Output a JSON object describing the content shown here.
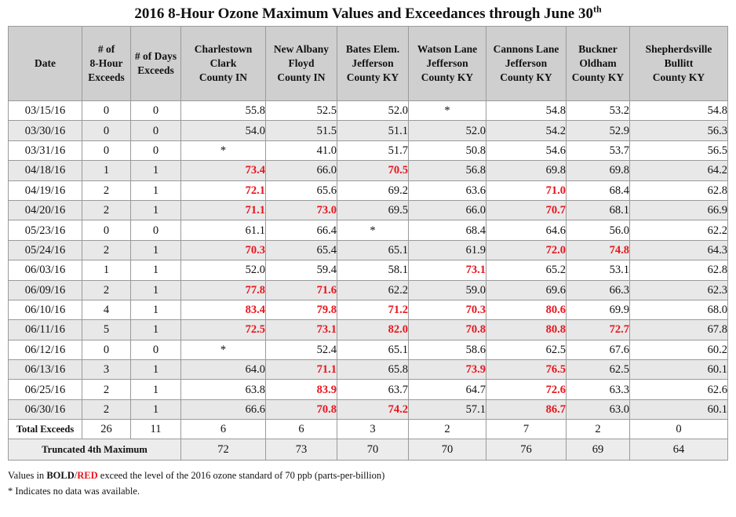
{
  "title": {
    "main": "2016 8-Hour Ozone Maximum Values and Exceedances through June 30",
    "sup": "th"
  },
  "headers": [
    [
      "Date"
    ],
    [
      "# of",
      "8-Hour",
      "Exceeds"
    ],
    [
      "# of Days",
      "Exceeds"
    ],
    [
      "Charlestown",
      "Clark",
      "County IN"
    ],
    [
      "New Albany",
      "Floyd",
      "County IN"
    ],
    [
      "Bates Elem.",
      "Jefferson",
      "County KY"
    ],
    [
      "Watson Lane",
      "Jefferson",
      "County KY"
    ],
    [
      "Cannons Lane",
      "Jefferson",
      "County KY"
    ],
    [
      "Buckner",
      "Oldham",
      "County KY"
    ],
    [
      "Shepherdsville",
      "Bullitt",
      "County KY"
    ]
  ],
  "rows": [
    {
      "date": "03/15/16",
      "exceeds": "0",
      "days": "0",
      "values": [
        "55.8",
        "52.5",
        "52.0",
        "*",
        "54.8",
        "53.2",
        "54.8"
      ]
    },
    {
      "date": "03/30/16",
      "exceeds": "0",
      "days": "0",
      "values": [
        "54.0",
        "51.5",
        "51.1",
        "52.0",
        "54.2",
        "52.9",
        "56.3"
      ]
    },
    {
      "date": "03/31/16",
      "exceeds": "0",
      "days": "0",
      "values": [
        "*",
        "41.0",
        "51.7",
        "50.8",
        "54.6",
        "53.7",
        "56.5"
      ]
    },
    {
      "date": "04/18/16",
      "exceeds": "1",
      "days": "1",
      "values": [
        "73.4",
        "66.0",
        "70.5",
        "56.8",
        "69.8",
        "69.8",
        "64.2"
      ]
    },
    {
      "date": "04/19/16",
      "exceeds": "2",
      "days": "1",
      "values": [
        "72.1",
        "65.6",
        "69.2",
        "63.6",
        "71.0",
        "68.4",
        "62.8"
      ]
    },
    {
      "date": "04/20/16",
      "exceeds": "2",
      "days": "1",
      "values": [
        "71.1",
        "73.0",
        "69.5",
        "66.0",
        "70.7",
        "68.1",
        "66.9"
      ]
    },
    {
      "date": "05/23/16",
      "exceeds": "0",
      "days": "0",
      "values": [
        "61.1",
        "66.4",
        "*",
        "68.4",
        "64.6",
        "56.0",
        "62.2"
      ]
    },
    {
      "date": "05/24/16",
      "exceeds": "2",
      "days": "1",
      "values": [
        "70.3",
        "65.4",
        "65.1",
        "61.9",
        "72.0",
        "74.8",
        "64.3"
      ]
    },
    {
      "date": "06/03/16",
      "exceeds": "1",
      "days": "1",
      "values": [
        "52.0",
        "59.4",
        "58.1",
        "73.1",
        "65.2",
        "53.1",
        "62.8"
      ]
    },
    {
      "date": "06/09/16",
      "exceeds": "2",
      "days": "1",
      "values": [
        "77.8",
        "71.6",
        "62.2",
        "59.0",
        "69.6",
        "66.3",
        "62.3"
      ]
    },
    {
      "date": "06/10/16",
      "exceeds": "4",
      "days": "1",
      "values": [
        "83.4",
        "79.8",
        "71.2",
        "70.3",
        "80.6",
        "69.9",
        "68.0"
      ]
    },
    {
      "date": "06/11/16",
      "exceeds": "5",
      "days": "1",
      "values": [
        "72.5",
        "73.1",
        "82.0",
        "70.8",
        "80.8",
        "72.7",
        "67.8"
      ]
    },
    {
      "date": "06/12/16",
      "exceeds": "0",
      "days": "0",
      "values": [
        "*",
        "52.4",
        "65.1",
        "58.6",
        "62.5",
        "67.6",
        "60.2"
      ]
    },
    {
      "date": "06/13/16",
      "exceeds": "3",
      "days": "1",
      "values": [
        "64.0",
        "71.1",
        "65.8",
        "73.9",
        "76.5",
        "62.5",
        "60.1"
      ]
    },
    {
      "date": "06/25/16",
      "exceeds": "2",
      "days": "1",
      "values": [
        "63.8",
        "83.9",
        "63.7",
        "64.7",
        "72.6",
        "63.3",
        "62.6"
      ]
    },
    {
      "date": "06/30/16",
      "exceeds": "2",
      "days": "1",
      "values": [
        "66.6",
        "70.8",
        "74.2",
        "57.1",
        "86.7",
        "63.0",
        "60.1"
      ]
    }
  ],
  "totals": {
    "label": "Total Exceeds",
    "exceeds": "26",
    "days": "11",
    "values": [
      "6",
      "6",
      "3",
      "2",
      "7",
      "2",
      "0"
    ]
  },
  "truncated": {
    "label": "Truncated 4th Maximum",
    "values": [
      "72",
      "73",
      "70",
      "70",
      "76",
      "69",
      "64"
    ]
  },
  "notes": {
    "line1_prefix": "Values in ",
    "line1_bold": "BOLD",
    "line1_slash": "/",
    "line1_red": "RED",
    "line1_suffix": " exceed the level of the 2016 ozone standard of 70 ppb (parts-per-billion)",
    "line2": "* Indicates no data was available."
  },
  "colors": {
    "exceed": "#e8141c",
    "header_bg": "#cfcfcf",
    "row_alt_bg": "#e8e8e8"
  },
  "standard_ppb": 70
}
